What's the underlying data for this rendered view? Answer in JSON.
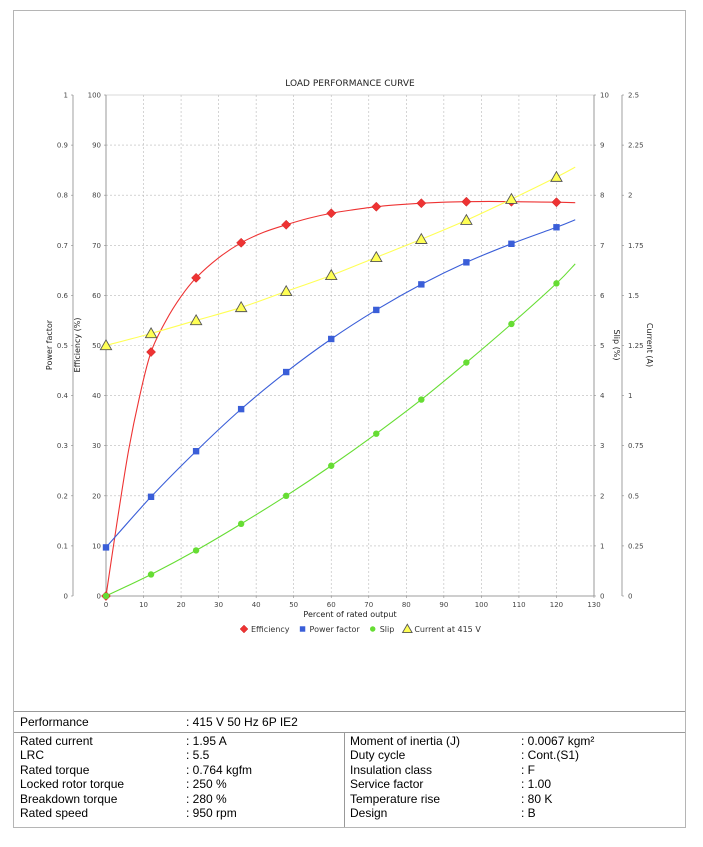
{
  "chart_data": {
    "type": "line",
    "title": "LOAD PERFORMANCE CURVE",
    "xlabel": "Percent of rated output",
    "xlim": [
      0,
      130
    ],
    "x_ticks": [
      "0",
      "10",
      "20",
      "30",
      "40",
      "50",
      "60",
      "70",
      "80",
      "90",
      "100",
      "110",
      "120",
      "130"
    ],
    "axes": {
      "power_factor": {
        "label": "Power factor",
        "range": [
          0,
          1
        ],
        "ticks": [
          "0",
          "0.1",
          "0.2",
          "0.3",
          "0.4",
          "0.5",
          "0.6",
          "0.7",
          "0.8",
          "0.9",
          "1"
        ]
      },
      "efficiency": {
        "label": "Efficiency (%)",
        "range": [
          0,
          100
        ],
        "ticks": [
          "0",
          "10",
          "20",
          "30",
          "40",
          "50",
          "60",
          "70",
          "80",
          "90",
          "100"
        ]
      },
      "slip": {
        "label": "Slip (%)",
        "range": [
          0,
          10
        ],
        "ticks": [
          "0",
          "1",
          "2",
          "3",
          "4",
          "5",
          "6",
          "7",
          "8",
          "9",
          "10"
        ]
      },
      "current": {
        "label": "Current (A)",
        "range": [
          0,
          2.5
        ],
        "ticks": [
          "0",
          "0.25",
          "0.5",
          "0.75",
          "1",
          "1.25",
          "1.5",
          "1.75",
          "2",
          "2.25",
          "2.5"
        ]
      }
    },
    "grid": true,
    "legend_position": "bottom",
    "series": [
      {
        "name": "Efficiency",
        "axis": "efficiency",
        "color": "#ee3333",
        "marker": "diamond",
        "x": [
          0,
          12,
          24,
          36,
          48,
          60,
          72,
          84,
          96,
          108,
          120
        ],
        "y": [
          0,
          48.7,
          63.5,
          70.5,
          74.1,
          76.4,
          77.7,
          78.4,
          78.7,
          78.7,
          78.6
        ],
        "curve_x": [
          0,
          3,
          6,
          9,
          12,
          16,
          20,
          24,
          30,
          36,
          42,
          48,
          54,
          60,
          66,
          72,
          78,
          84,
          90,
          96,
          102,
          108,
          114,
          120,
          125
        ],
        "curve_y": [
          0,
          15,
          29,
          40,
          48.7,
          55,
          59.8,
          63.5,
          67.5,
          70.5,
          72.6,
          74.1,
          75.4,
          76.4,
          77.1,
          77.7,
          78.1,
          78.4,
          78.6,
          78.7,
          78.75,
          78.7,
          78.65,
          78.6,
          78.5
        ]
      },
      {
        "name": "Power factor",
        "axis": "power_factor",
        "color": "#3a5ed8",
        "marker": "square",
        "x": [
          0,
          12,
          24,
          36,
          48,
          60,
          72,
          84,
          96,
          108,
          120
        ],
        "y": [
          0.097,
          0.198,
          0.289,
          0.373,
          0.447,
          0.513,
          0.571,
          0.622,
          0.666,
          0.703,
          0.736
        ],
        "curve_x": [
          0,
          12,
          24,
          36,
          48,
          60,
          72,
          84,
          96,
          108,
          120,
          125
        ],
        "curve_y": [
          0.097,
          0.198,
          0.289,
          0.373,
          0.447,
          0.513,
          0.571,
          0.622,
          0.666,
          0.703,
          0.736,
          0.751
        ]
      },
      {
        "name": "Slip",
        "axis": "slip",
        "color": "#66dd33",
        "marker": "circle",
        "x": [
          0,
          12,
          24,
          36,
          48,
          60,
          72,
          84,
          96,
          108,
          120
        ],
        "y": [
          0,
          0.43,
          0.91,
          1.44,
          2.0,
          2.6,
          3.24,
          3.92,
          4.66,
          5.43,
          6.24
        ],
        "curve_x": [
          0,
          12,
          24,
          36,
          48,
          60,
          72,
          84,
          96,
          108,
          120,
          125
        ],
        "curve_y": [
          0,
          0.43,
          0.91,
          1.44,
          2.0,
          2.6,
          3.24,
          3.92,
          4.66,
          5.43,
          6.24,
          6.63
        ]
      },
      {
        "name": "Current at 415 V",
        "axis": "current",
        "color": "#ffff55",
        "marker": "triangle",
        "x": [
          0,
          12,
          24,
          36,
          48,
          60,
          72,
          84,
          96,
          108,
          120
        ],
        "y": [
          1.25,
          1.31,
          1.375,
          1.44,
          1.52,
          1.6,
          1.69,
          1.78,
          1.875,
          1.98,
          2.09
        ],
        "curve_x": [
          0,
          12,
          24,
          36,
          48,
          60,
          72,
          84,
          96,
          108,
          120,
          125
        ],
        "curve_y": [
          1.25,
          1.31,
          1.375,
          1.44,
          1.52,
          1.6,
          1.69,
          1.78,
          1.875,
          1.98,
          2.09,
          2.14
        ]
      }
    ]
  },
  "specs": {
    "performance": {
      "label": "Performance",
      "value": ": 415 V 50 Hz 6P IE2"
    },
    "left": [
      {
        "label": "Rated current",
        "value": ": 1.95 A"
      },
      {
        "label": "LRC",
        "value": ": 5.5"
      },
      {
        "label": "Rated torque",
        "value": ": 0.764 kgfm"
      },
      {
        "label": "Locked rotor torque",
        "value": ": 250 %"
      },
      {
        "label": "Breakdown torque",
        "value": ": 280 %"
      },
      {
        "label": "Rated speed",
        "value": ": 950 rpm"
      }
    ],
    "right": [
      {
        "label": "Moment of inertia (J)",
        "value": ": 0.0067 kgm²"
      },
      {
        "label": "Duty cycle",
        "value": ": Cont.(S1)"
      },
      {
        "label": "Insulation class",
        "value": ": F"
      },
      {
        "label": "Service factor",
        "value": ": 1.00"
      },
      {
        "label": "Temperature rise",
        "value": ": 80 K"
      },
      {
        "label": "Design",
        "value": ": B"
      }
    ]
  }
}
